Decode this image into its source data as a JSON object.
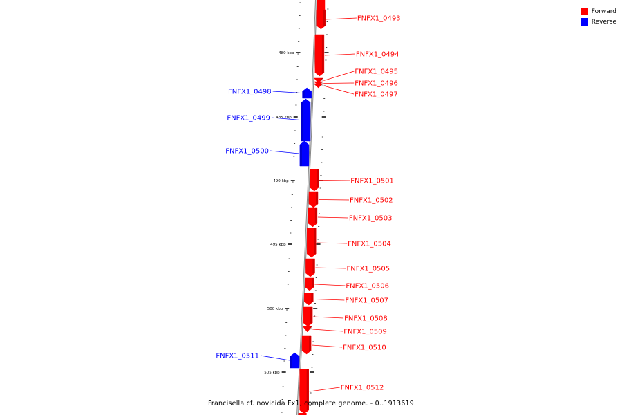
{
  "caption": "Francisella cf. novicida Fx1, complete genome. - 0..1913619",
  "legend": [
    {
      "label": "Forward",
      "color": "#ff0000"
    },
    {
      "label": "Reverse",
      "color": "#0000ff"
    }
  ],
  "colors": {
    "forward": "#ff0000",
    "reverse": "#0000ff",
    "backbone": "#888888"
  },
  "scale_labels": [
    "480 kbp",
    "485 kbp",
    "490 kbp",
    "495 kbp",
    "500 kbp",
    "505 kbp"
  ],
  "genes": [
    {
      "name": "FNFX1_0493",
      "strand": "forward"
    },
    {
      "name": "FNFX1_0494",
      "strand": "forward"
    },
    {
      "name": "FNFX1_0495",
      "strand": "forward"
    },
    {
      "name": "FNFX1_0496",
      "strand": "forward"
    },
    {
      "name": "FNFX1_0497",
      "strand": "forward"
    },
    {
      "name": "FNFX1_0498",
      "strand": "reverse"
    },
    {
      "name": "FNFX1_0499",
      "strand": "reverse"
    },
    {
      "name": "FNFX1_0500",
      "strand": "reverse"
    },
    {
      "name": "FNFX1_0501",
      "strand": "forward"
    },
    {
      "name": "FNFX1_0502",
      "strand": "forward"
    },
    {
      "name": "FNFX1_0503",
      "strand": "forward"
    },
    {
      "name": "FNFX1_0504",
      "strand": "forward"
    },
    {
      "name": "FNFX1_0505",
      "strand": "forward"
    },
    {
      "name": "FNFX1_0506",
      "strand": "forward"
    },
    {
      "name": "FNFX1_0507",
      "strand": "forward"
    },
    {
      "name": "FNFX1_0508",
      "strand": "forward"
    },
    {
      "name": "FNFX1_0509",
      "strand": "forward"
    },
    {
      "name": "FNFX1_0510",
      "strand": "forward"
    },
    {
      "name": "FNFX1_0511",
      "strand": "reverse"
    },
    {
      "name": "FNFX1_0512",
      "strand": "forward"
    }
  ]
}
